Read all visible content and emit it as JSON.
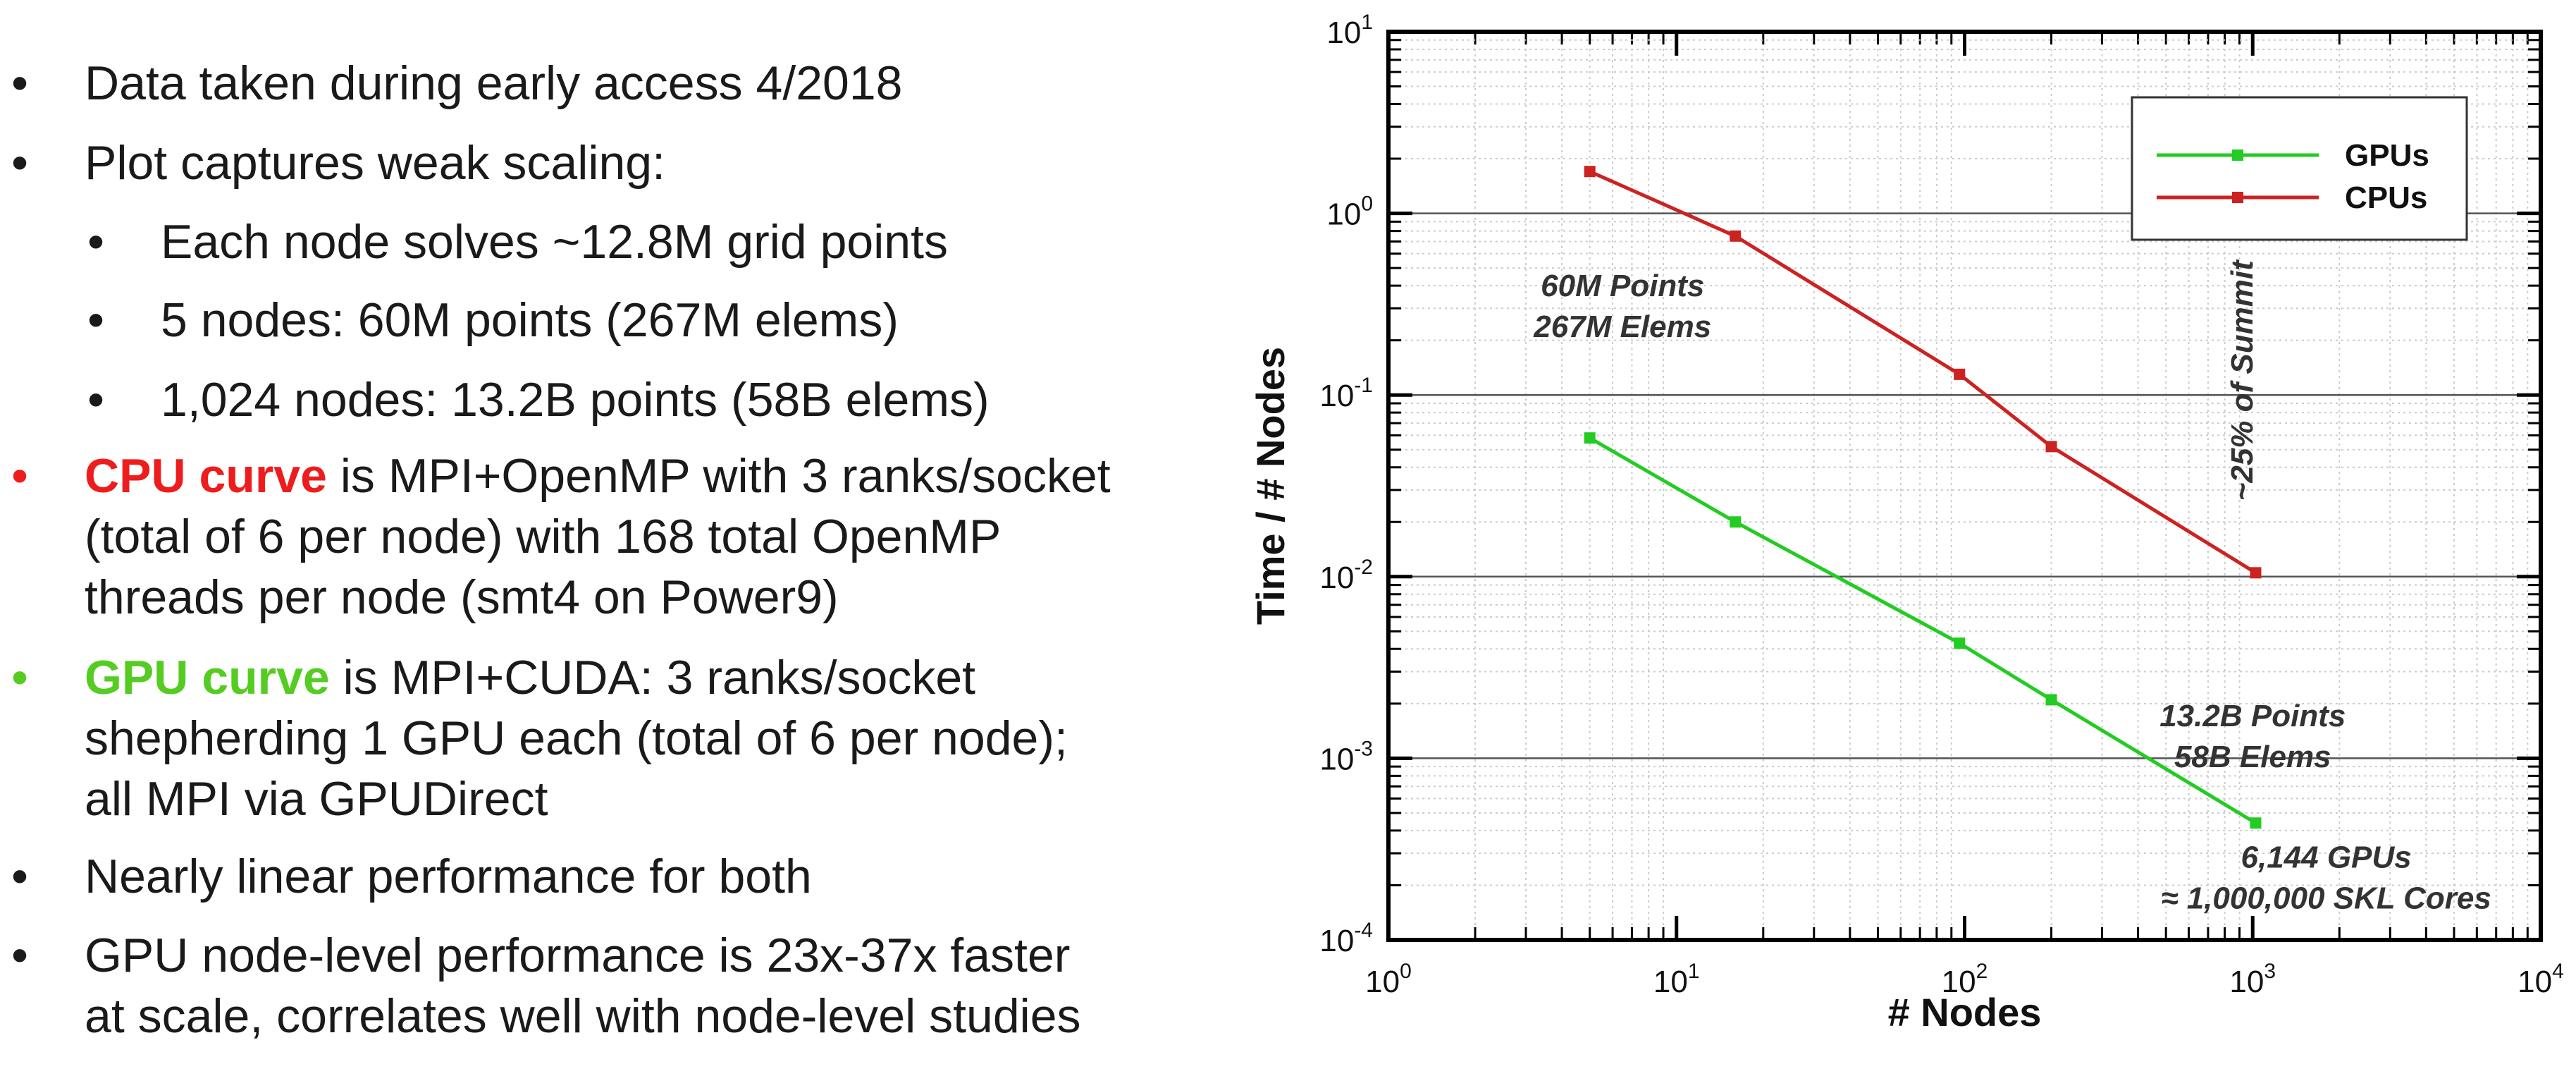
{
  "bullets": [
    {
      "level": 1,
      "text": "Data taken during early access 4/2018"
    },
    {
      "level": 1,
      "text": "Plot captures weak scaling:"
    },
    {
      "level": 2,
      "text": "Each node solves ~12.8M grid points"
    },
    {
      "level": 2,
      "text": "5 nodes: 60M points (267M elems)"
    },
    {
      "level": 2,
      "text": "1,024 nodes: 13.2B points (58B elems)"
    },
    {
      "level": 1,
      "color": "#ee1c1c",
      "highlight": "CPU curve",
      "lines": [
        " is MPI+OpenMP with 3 ranks/socket",
        "(total of 6 per node) with 168 total OpenMP",
        "threads per node (smt4 on Power9)"
      ]
    },
    {
      "level": 1,
      "color": "#55cc22",
      "highlight": "GPU curve",
      "lines": [
        " is MPI+CUDA: 3 ranks/socket",
        "shepherding 1 GPU each (total of 6 per node);",
        "all MPI via GPUDirect"
      ]
    },
    {
      "level": 1,
      "text": "Nearly linear performance for both"
    },
    {
      "level": 1,
      "lines": [
        "GPU node-level performance is 23x-37x faster",
        "at scale, correlates well with node-level studies"
      ]
    }
  ],
  "bullet_glyph": "•",
  "chart_data": {
    "type": "line",
    "xlabel": "# Nodes",
    "ylabel": "Time / # Nodes",
    "xscale": "log",
    "yscale": "log",
    "xlim": [
      1,
      10000
    ],
    "ylim": [
      0.0001,
      10
    ],
    "x_ticks": [
      1,
      10,
      100,
      1000,
      10000
    ],
    "x_tick_labels": [
      {
        "base": "10",
        "exp": "0"
      },
      {
        "base": "10",
        "exp": "1"
      },
      {
        "base": "10",
        "exp": "2"
      },
      {
        "base": "10",
        "exp": "3"
      },
      {
        "base": "10",
        "exp": "4"
      }
    ],
    "y_ticks": [
      0.0001,
      0.001,
      0.01,
      0.1,
      1,
      10
    ],
    "y_tick_labels": [
      {
        "base": "10",
        "exp": "-4"
      },
      {
        "base": "10",
        "exp": "-3"
      },
      {
        "base": "10",
        "exp": "-2"
      },
      {
        "base": "10",
        "exp": "-1"
      },
      {
        "base": "10",
        "exp": "0"
      },
      {
        "base": "10",
        "exp": "1"
      }
    ],
    "grid": true,
    "legend_position": "top-right",
    "series": [
      {
        "name": "GPUs",
        "color": "#22cc22",
        "x": [
          5,
          16,
          96,
          200,
          1024
        ],
        "y": [
          0.058,
          0.02,
          0.0043,
          0.0021,
          0.00044
        ]
      },
      {
        "name": "CPUs",
        "color": "#cc2222",
        "x": [
          5,
          16,
          96,
          200,
          1024
        ],
        "y": [
          1.7,
          0.75,
          0.13,
          0.052,
          0.0105
        ]
      }
    ],
    "annotations": [
      {
        "lines": [
          "60M Points",
          "267M Elems"
        ],
        "x": 6.5,
        "y": 0.35,
        "anchor": "middle"
      },
      {
        "lines": [
          "13.2B Points",
          "58B Elems"
        ],
        "x": 1000,
        "y": 0.0015,
        "anchor": "middle"
      },
      {
        "lines": [
          "6,144 GPUs",
          "≈ 1,000,000 SKL Cores"
        ],
        "x": 1800,
        "y": 0.00025,
        "anchor": "middle"
      },
      {
        "lines": [
          "~25% of Summit"
        ],
        "x": 1000,
        "y": 0.12,
        "anchor": "middle",
        "rotate": -90
      }
    ]
  }
}
